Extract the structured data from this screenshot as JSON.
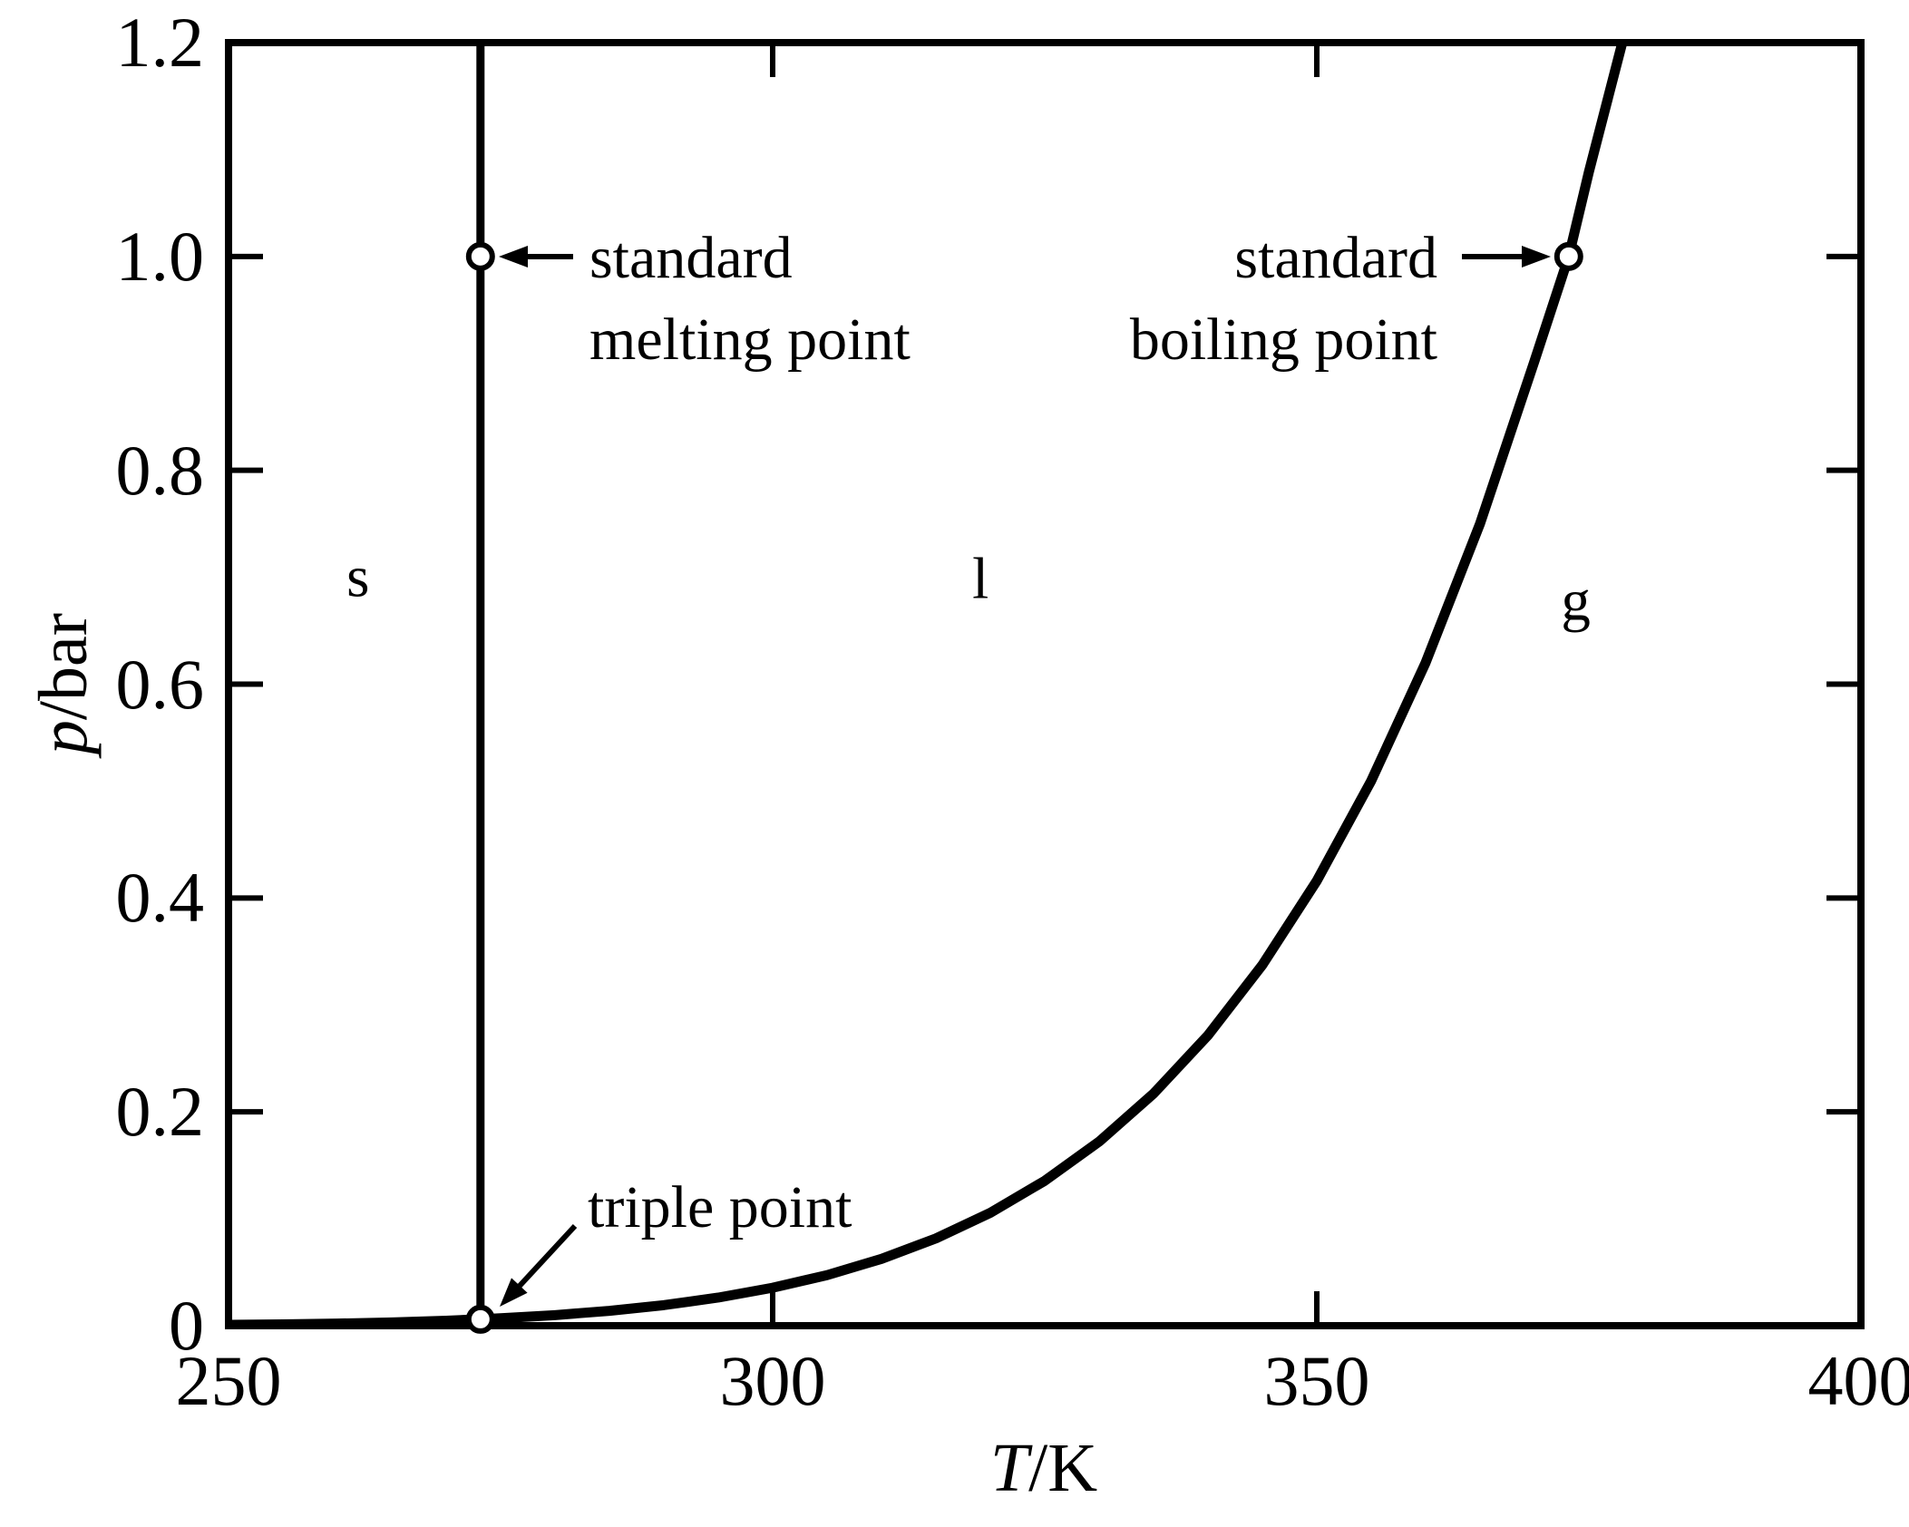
{
  "figure": {
    "background": "#ffffff",
    "ink": "#000000"
  },
  "chart_data": {
    "type": "line",
    "title": "",
    "xlabel": "T/K",
    "ylabel": "p/bar",
    "xlabel_var": "T",
    "xlabel_rest": "/K",
    "ylabel_var": "p",
    "ylabel_rest": "/bar",
    "xlim": [
      250,
      400
    ],
    "ylim": [
      0,
      1.2
    ],
    "grid": false,
    "legend": "none",
    "xticks": [
      {
        "value": 250,
        "label": "250"
      },
      {
        "value": 300,
        "label": "300"
      },
      {
        "value": 350,
        "label": "350"
      },
      {
        "value": 400,
        "label": "400"
      }
    ],
    "yticks": [
      {
        "value": 1.2,
        "label": "1.2"
      },
      {
        "value": 1.0,
        "label": "1.0"
      },
      {
        "value": 0.8,
        "label": "0.8"
      },
      {
        "value": 0.6,
        "label": "0.6"
      },
      {
        "value": 0.4,
        "label": "0.4"
      },
      {
        "value": 0.2,
        "label": "0.2"
      },
      {
        "value": 0,
        "label": "0"
      }
    ],
    "series": [
      {
        "name": "sublimation-curve-solid-gas",
        "points": [
          [
            250,
            0.0008
          ],
          [
            255,
            0.0013
          ],
          [
            260,
            0.002
          ],
          [
            265,
            0.0031
          ],
          [
            270,
            0.0047
          ],
          [
            273.15,
            0.0061
          ]
        ]
      },
      {
        "name": "fusion-line-solid-liquid",
        "points": [
          [
            273.15,
            0.0061
          ],
          [
            273.15,
            1.2
          ]
        ]
      },
      {
        "name": "vaporization-curve-liquid-gas",
        "points": [
          [
            273.15,
            0.0061
          ],
          [
            275,
            0.007
          ],
          [
            280,
            0.0099
          ],
          [
            285,
            0.0139
          ],
          [
            290,
            0.0192
          ],
          [
            295,
            0.0263
          ],
          [
            300,
            0.0355
          ],
          [
            305,
            0.0473
          ],
          [
            310,
            0.0625
          ],
          [
            315,
            0.0816
          ],
          [
            320,
            0.1056
          ],
          [
            325,
            0.1355
          ],
          [
            330,
            0.1722
          ],
          [
            335,
            0.2171
          ],
          [
            340,
            0.2716
          ],
          [
            345,
            0.3374
          ],
          [
            350,
            0.4161
          ],
          [
            355,
            0.5096
          ],
          [
            360,
            0.6201
          ],
          [
            365,
            0.7501
          ],
          [
            370,
            0.9021
          ],
          [
            373.15,
            1.0
          ],
          [
            375,
            1.079
          ],
          [
            378.2,
            1.205
          ]
        ]
      }
    ],
    "markers": [
      {
        "name": "standard-melting-point",
        "T": 273.15,
        "p": 1.0
      },
      {
        "name": "standard-boiling-point",
        "T": 373.15,
        "p": 1.0
      },
      {
        "name": "triple-point",
        "T": 273.15,
        "p": 0.006
      }
    ],
    "region_labels": [
      {
        "text": "s",
        "T": 261.9,
        "p": 0.7
      },
      {
        "text": "l",
        "T": 319.1,
        "p": 0.698
      },
      {
        "text": "g",
        "T": 373.8,
        "p": 0.678
      }
    ],
    "annotations": [
      {
        "name": "standard-melting-point-label",
        "lines": [
          "standard",
          "melting point"
        ]
      },
      {
        "name": "standard-boiling-point-label",
        "lines": [
          "standard",
          "boiling point"
        ]
      },
      {
        "name": "triple-point-label",
        "lines": [
          "triple point"
        ]
      }
    ]
  }
}
